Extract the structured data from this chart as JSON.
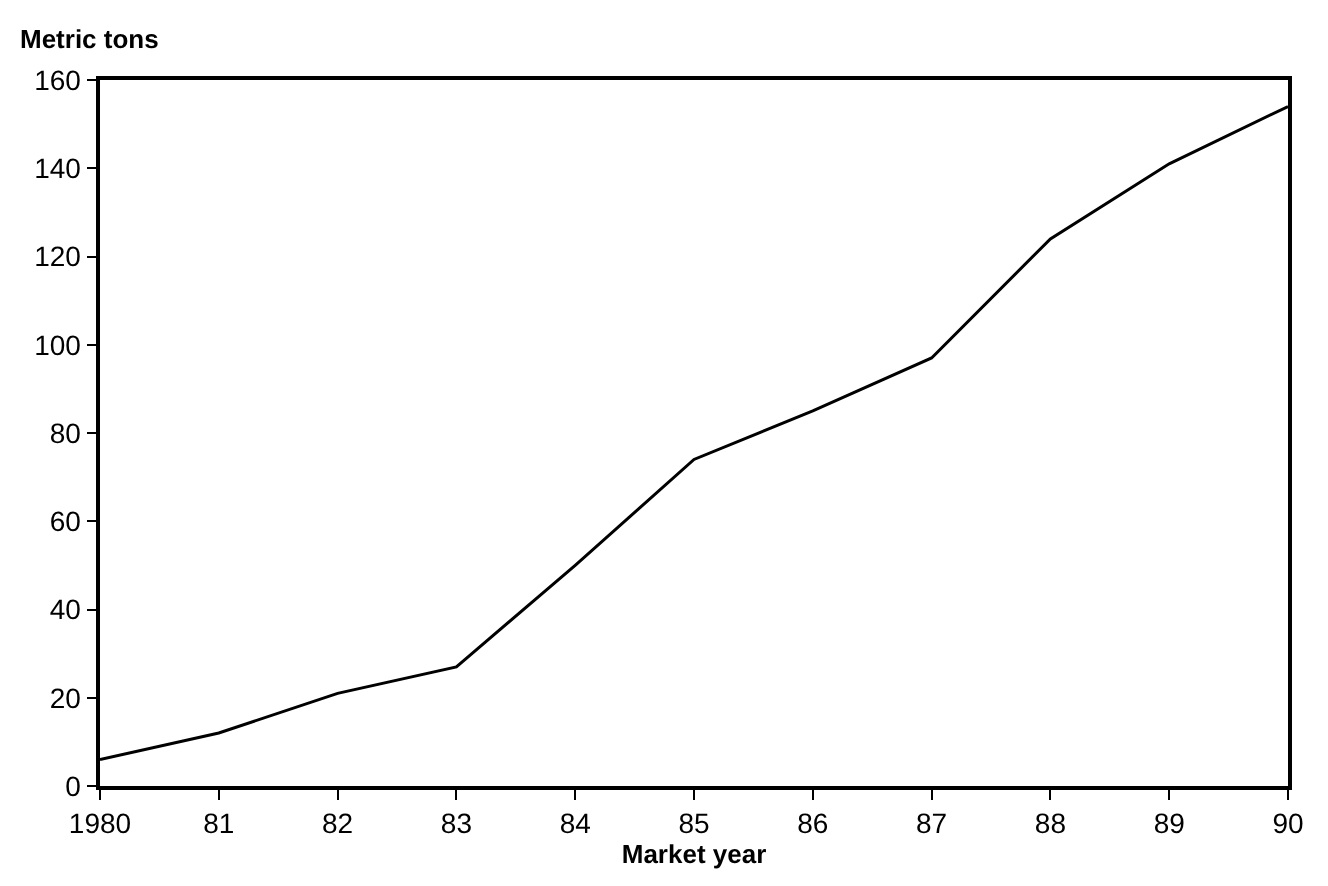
{
  "chart_data": {
    "type": "line",
    "xlabel": "Market year",
    "ylabel": "Metric tons",
    "x": [
      1980,
      1981,
      1982,
      1983,
      1984,
      1985,
      1986,
      1987,
      1988,
      1989,
      1990
    ],
    "values": [
      6,
      12,
      21,
      27,
      50,
      74,
      85,
      97,
      124,
      141,
      154
    ],
    "color": "#000000",
    "marker": "none",
    "line_style": "solid",
    "xlim": [
      1980,
      1990
    ],
    "xticks": [
      {
        "value": 1980,
        "label": "1980"
      },
      {
        "value": 1981,
        "label": "81"
      },
      {
        "value": 1982,
        "label": "82"
      },
      {
        "value": 1983,
        "label": "83"
      },
      {
        "value": 1984,
        "label": "84"
      },
      {
        "value": 1985,
        "label": "85"
      },
      {
        "value": 1986,
        "label": "86"
      },
      {
        "value": 1987,
        "label": "87"
      },
      {
        "value": 1988,
        "label": "88"
      },
      {
        "value": 1989,
        "label": "89"
      },
      {
        "value": 1990,
        "label": "90"
      }
    ],
    "ylim": [
      0,
      160
    ],
    "yticks": [
      0,
      20,
      40,
      60,
      80,
      100,
      120,
      140,
      160
    ]
  }
}
